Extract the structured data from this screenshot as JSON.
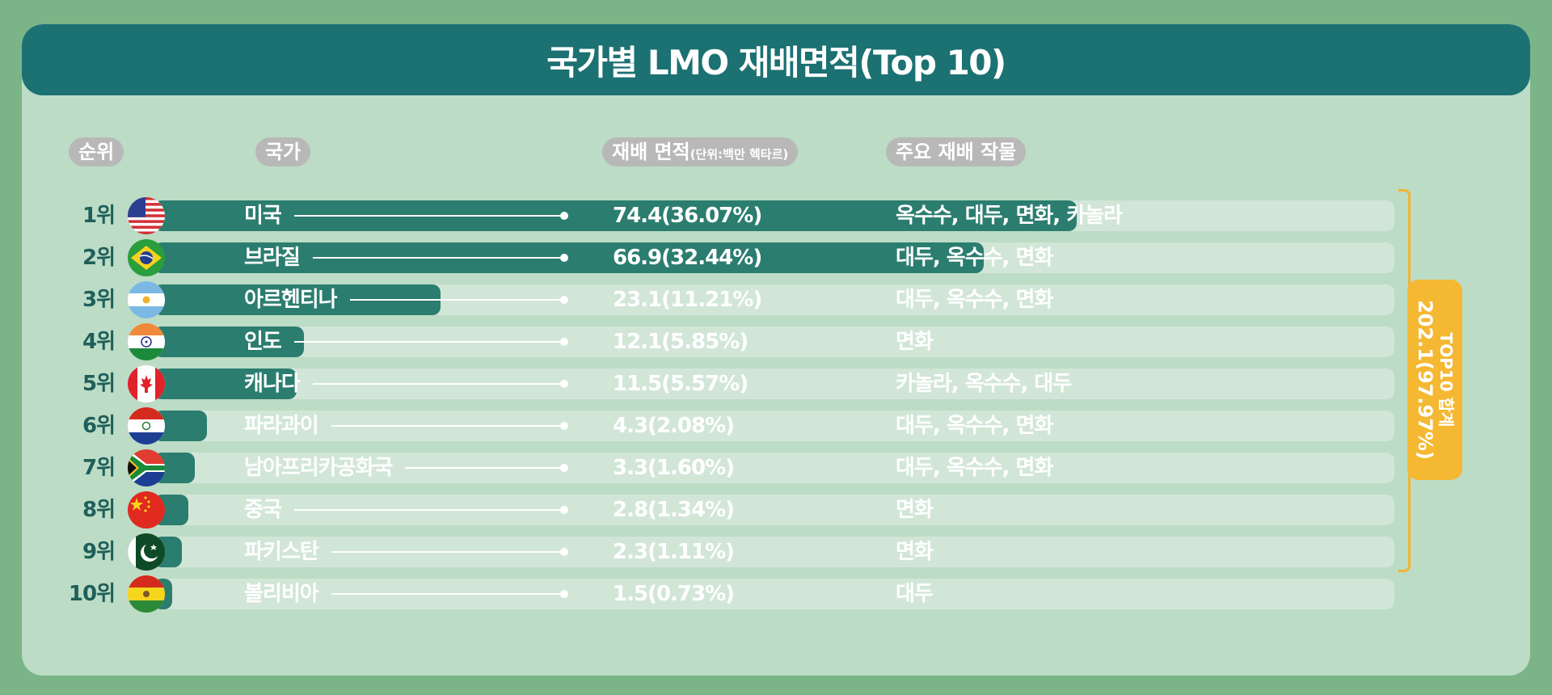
{
  "title": "국가별 LMO 재배면적(Top 10)",
  "headers": {
    "rank": "순위",
    "country": "국가",
    "area": "재배 면적",
    "area_unit": "(단위:백만 헥타르)",
    "crops": "주요 재배 작물"
  },
  "total": {
    "label": "TOP10 합계",
    "value": "202.1(97.97%)"
  },
  "colors": {
    "bar": "#2b7d6f",
    "track": "#d2e6d8",
    "title_bg": "#1c7172",
    "accent": "#f5b833"
  },
  "chart_data": {
    "type": "bar",
    "orientation": "horizontal",
    "title": "국가별 LMO 재배면적(Top 10)",
    "categories": [
      "미국",
      "브라질",
      "아르헨티나",
      "인도",
      "캐나다",
      "파라과이",
      "남아프리카공화국",
      "중국",
      "파키스탄",
      "볼리비아"
    ],
    "values": [
      74.4,
      66.9,
      23.1,
      12.1,
      11.5,
      4.3,
      3.3,
      2.8,
      2.3,
      1.5
    ],
    "rows": [
      {
        "rank": "1위",
        "flag": "usa-flag-icon",
        "country": "미국",
        "area": "74.4(36.07%)",
        "crops": "옥수수, 대두, 면화, 카놀라"
      },
      {
        "rank": "2위",
        "flag": "brazil-flag-icon",
        "country": "브라질",
        "area": "66.9(32.44%)",
        "crops": "대두, 옥수수, 면화"
      },
      {
        "rank": "3위",
        "flag": "argentina-flag-icon",
        "country": "아르헨티나",
        "area": "23.1(11.21%)",
        "crops": "대두, 옥수수, 면화"
      },
      {
        "rank": "4위",
        "flag": "india-flag-icon",
        "country": "인도",
        "area": "12.1(5.85%)",
        "crops": "면화"
      },
      {
        "rank": "5위",
        "flag": "canada-flag-icon",
        "country": "캐나다",
        "area": "11.5(5.57%)",
        "crops": "카놀라, 옥수수, 대두"
      },
      {
        "rank": "6위",
        "flag": "paraguay-flag-icon",
        "country": "파라과이",
        "area": "4.3(2.08%)",
        "crops": "대두, 옥수수, 면화"
      },
      {
        "rank": "7위",
        "flag": "south-africa-flag-icon",
        "country": "남아프리카공화국",
        "area": "3.3(1.60%)",
        "crops": "대두, 옥수수, 면화"
      },
      {
        "rank": "8위",
        "flag": "china-flag-icon",
        "country": "중국",
        "area": "2.8(1.34%)",
        "crops": "면화"
      },
      {
        "rank": "9위",
        "flag": "pakistan-flag-icon",
        "country": "파키스탄",
        "area": "2.3(1.11%)",
        "crops": "면화"
      },
      {
        "rank": "10위",
        "flag": "bolivia-flag-icon",
        "country": "볼리비아",
        "area": "1.5(0.73%)",
        "crops": "대두"
      }
    ],
    "xlim": [
      0,
      100
    ],
    "grid": false,
    "legend": "none"
  }
}
